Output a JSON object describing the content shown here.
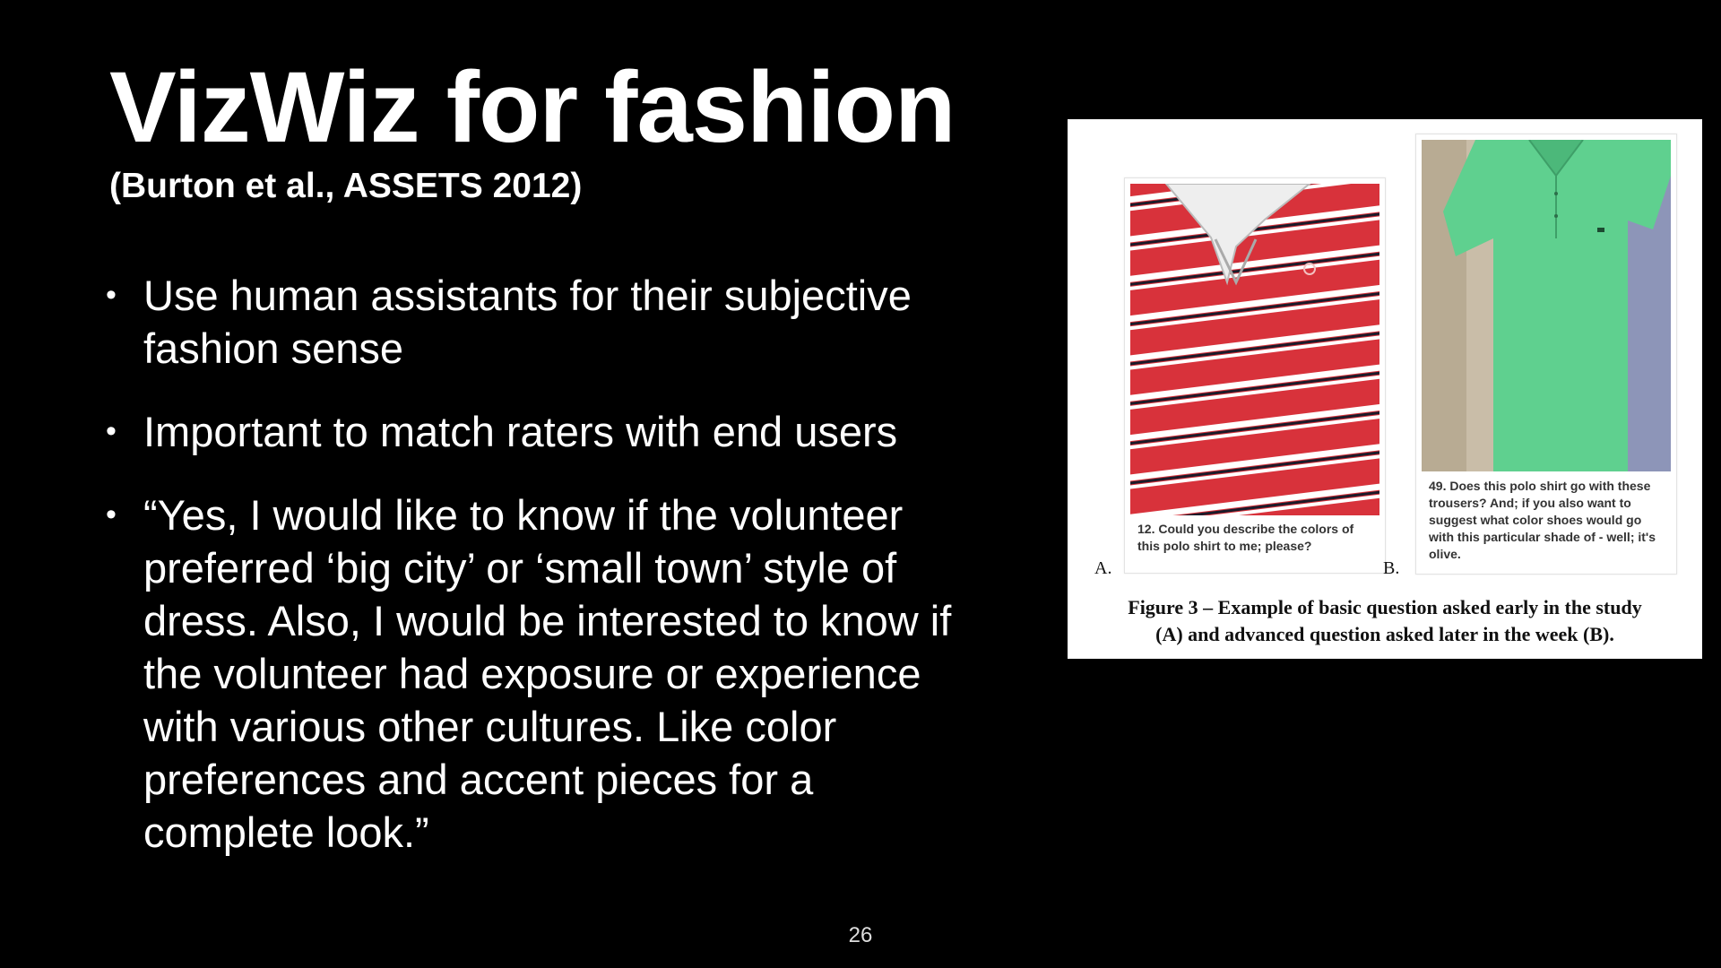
{
  "slide": {
    "title": "VizWiz for fashion",
    "subtitle": "(Burton et al., ASSETS 2012)",
    "bullet_glyph": "•",
    "bullets": [
      "Use human assistants for their subjective fashion sense",
      "Important to match raters with end users",
      "“Yes, I would like to know if the volunteer preferred ‘big city’ or ‘small town’ style of dress. Also, I would be interested to know if the volunteer had exposure or experience with various other cultures. Like color preferences and accent pieces for a complete look.”"
    ],
    "page_number": "26"
  },
  "figure": {
    "panel_a": {
      "letter": "A.",
      "question": "12. Could you describe the colors of this polo shirt to me; please?",
      "photo_icon": "red-striped-polo-shirt-photo"
    },
    "panel_b": {
      "letter": "B.",
      "question": "49. Does this polo shirt go with these trousers? And; if you also want to suggest what color shoes would go with this particular shade of - well; it's olive.",
      "photo_icon": "green-polo-and-khaki-trousers-photo"
    },
    "caption_line1": "Figure 3 – Example of basic question asked early in the study",
    "caption_line2": "(A) and advanced question asked later in the week (B)."
  },
  "colors": {
    "background": "#000000",
    "text": "#ffffff",
    "figure_background": "#ffffff",
    "polo_red": "#d8323b",
    "polo_green": "#5fd08f",
    "trousers_khaki": "#c9bda8"
  }
}
